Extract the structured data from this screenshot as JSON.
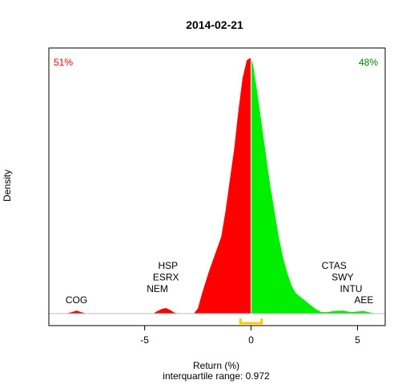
{
  "chart_data": {
    "type": "area",
    "title": "2014-02-21",
    "xlabel": "Return (%)",
    "sublabel": "interquartile range: 0.972",
    "ylabel": "Density",
    "xlim": [
      -9.5,
      6.3
    ],
    "ylim": [
      0,
      1
    ],
    "x_ticks": [
      -5,
      0,
      5
    ],
    "x_tick_labels": [
      "-5",
      "0",
      "5"
    ],
    "negative_share": "51%",
    "positive_share": "48%",
    "colors": {
      "negative": "#ff0000",
      "positive": "#00ee00",
      "iqr": "#ffcc00",
      "baseline": "#bebebe"
    },
    "iqr_range": [
      -0.5,
      0.5
    ],
    "density": [
      [
        -9.5,
        0.0
      ],
      [
        -8.75,
        0.0
      ],
      [
        -8.5,
        0.004
      ],
      [
        -8.2,
        0.012
      ],
      [
        -7.9,
        0.004
      ],
      [
        -7.7,
        0.0
      ],
      [
        -4.6,
        0.0
      ],
      [
        -4.4,
        0.01
      ],
      [
        -4.2,
        0.018
      ],
      [
        -4.0,
        0.022
      ],
      [
        -3.8,
        0.014
      ],
      [
        -3.6,
        0.004
      ],
      [
        -3.4,
        0.0
      ],
      [
        -2.7,
        0.0
      ],
      [
        -2.5,
        0.02
      ],
      [
        -2.3,
        0.08
      ],
      [
        -2.0,
        0.16
      ],
      [
        -1.7,
        0.23
      ],
      [
        -1.4,
        0.3
      ],
      [
        -1.2,
        0.4
      ],
      [
        -1.0,
        0.52
      ],
      [
        -0.8,
        0.64
      ],
      [
        -0.6,
        0.79
      ],
      [
        -0.4,
        0.92
      ],
      [
        -0.2,
        0.99
      ],
      [
        0.0,
        1.0
      ],
      [
        0.1,
        0.97
      ],
      [
        0.3,
        0.86
      ],
      [
        0.5,
        0.74
      ],
      [
        0.7,
        0.62
      ],
      [
        0.9,
        0.5
      ],
      [
        1.1,
        0.4
      ],
      [
        1.3,
        0.3
      ],
      [
        1.5,
        0.22
      ],
      [
        1.7,
        0.16
      ],
      [
        1.9,
        0.11
      ],
      [
        2.1,
        0.08
      ],
      [
        2.4,
        0.06
      ],
      [
        2.7,
        0.04
      ],
      [
        3.0,
        0.02
      ],
      [
        3.3,
        0.006
      ],
      [
        3.6,
        0.006
      ],
      [
        3.9,
        0.01
      ],
      [
        4.3,
        0.012
      ],
      [
        4.7,
        0.006
      ],
      [
        5.0,
        0.008
      ],
      [
        5.3,
        0.01
      ],
      [
        5.6,
        0.004
      ],
      [
        5.9,
        0.0
      ],
      [
        6.3,
        0.0
      ]
    ],
    "annotations": [
      {
        "text": "COG",
        "x": -8.2,
        "y": 0.04
      },
      {
        "text": "NEM",
        "x": -4.4,
        "y": 0.085
      },
      {
        "text": "ESRX",
        "x": -4.0,
        "y": 0.13
      },
      {
        "text": "HSP",
        "x": -3.9,
        "y": 0.175
      },
      {
        "text": "CTAS",
        "x": 3.9,
        "y": 0.175
      },
      {
        "text": "SWY",
        "x": 4.3,
        "y": 0.13
      },
      {
        "text": "INTU",
        "x": 4.7,
        "y": 0.085
      },
      {
        "text": "AEE",
        "x": 5.3,
        "y": 0.04
      }
    ]
  }
}
